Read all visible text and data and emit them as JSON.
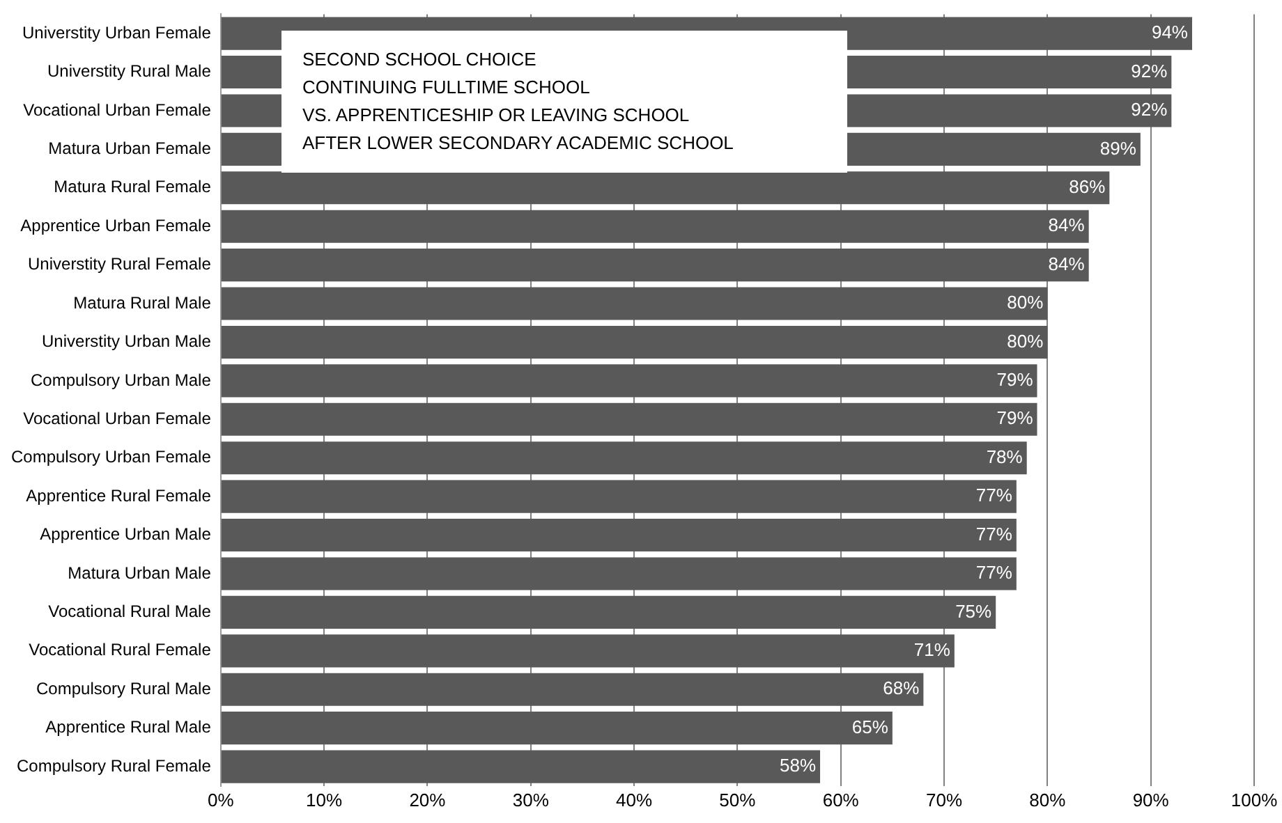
{
  "chart_data": {
    "type": "bar",
    "orientation": "horizontal",
    "categories": [
      "Universtity Urban Female",
      "Universtity Rural Male",
      "Vocational Urban Female",
      "Matura Urban Female",
      "Matura Rural Female",
      "Apprentice Urban Female",
      "Universtity Rural Female",
      "Matura Rural Male",
      "Universtity Urban Male",
      "Compulsory Urban Male",
      "Vocational Urban Female",
      "Compulsory Urban Female",
      "Apprentice Rural Female",
      "Apprentice Urban Male",
      "Matura Urban Male",
      "Vocational Rural Male",
      "Vocational Rural Female",
      "Compulsory Rural Male",
      "Apprentice Rural Male",
      "Compulsory Rural Female"
    ],
    "values": [
      94,
      92,
      92,
      89,
      86,
      84,
      84,
      80,
      80,
      79,
      79,
      78,
      77,
      77,
      77,
      75,
      71,
      68,
      65,
      58
    ],
    "value_labels": [
      "94%",
      "92%",
      "92%",
      "89%",
      "86%",
      "84%",
      "84%",
      "80%",
      "80%",
      "79%",
      "79%",
      "78%",
      "77%",
      "77%",
      "77%",
      "75%",
      "71%",
      "68%",
      "65%",
      "58%"
    ],
    "color": "#595959",
    "xlim": [
      0,
      100
    ],
    "xticks": [
      {
        "value": 0,
        "label": "0%"
      },
      {
        "value": 10,
        "label": "10%"
      },
      {
        "value": 20,
        "label": "20%"
      },
      {
        "value": 30,
        "label": "30%"
      },
      {
        "value": 40,
        "label": "40%"
      },
      {
        "value": 50,
        "label": "50%"
      },
      {
        "value": 60,
        "label": "60%"
      },
      {
        "value": 70,
        "label": "70%"
      },
      {
        "value": 80,
        "label": "80%"
      },
      {
        "value": 90,
        "label": "90%"
      },
      {
        "value": 100,
        "label": "100%"
      }
    ],
    "grid": "x",
    "legend": false,
    "annotations": [
      "SECOND SCHOOL CHOICE\nCONTINUING FULLTIME SCHOOL\nVS. APPRENTICESHIP OR LEAVING SCHOOL\nAFTER  LOWER SECONDARY ACADEMIC SCHOOL"
    ]
  }
}
